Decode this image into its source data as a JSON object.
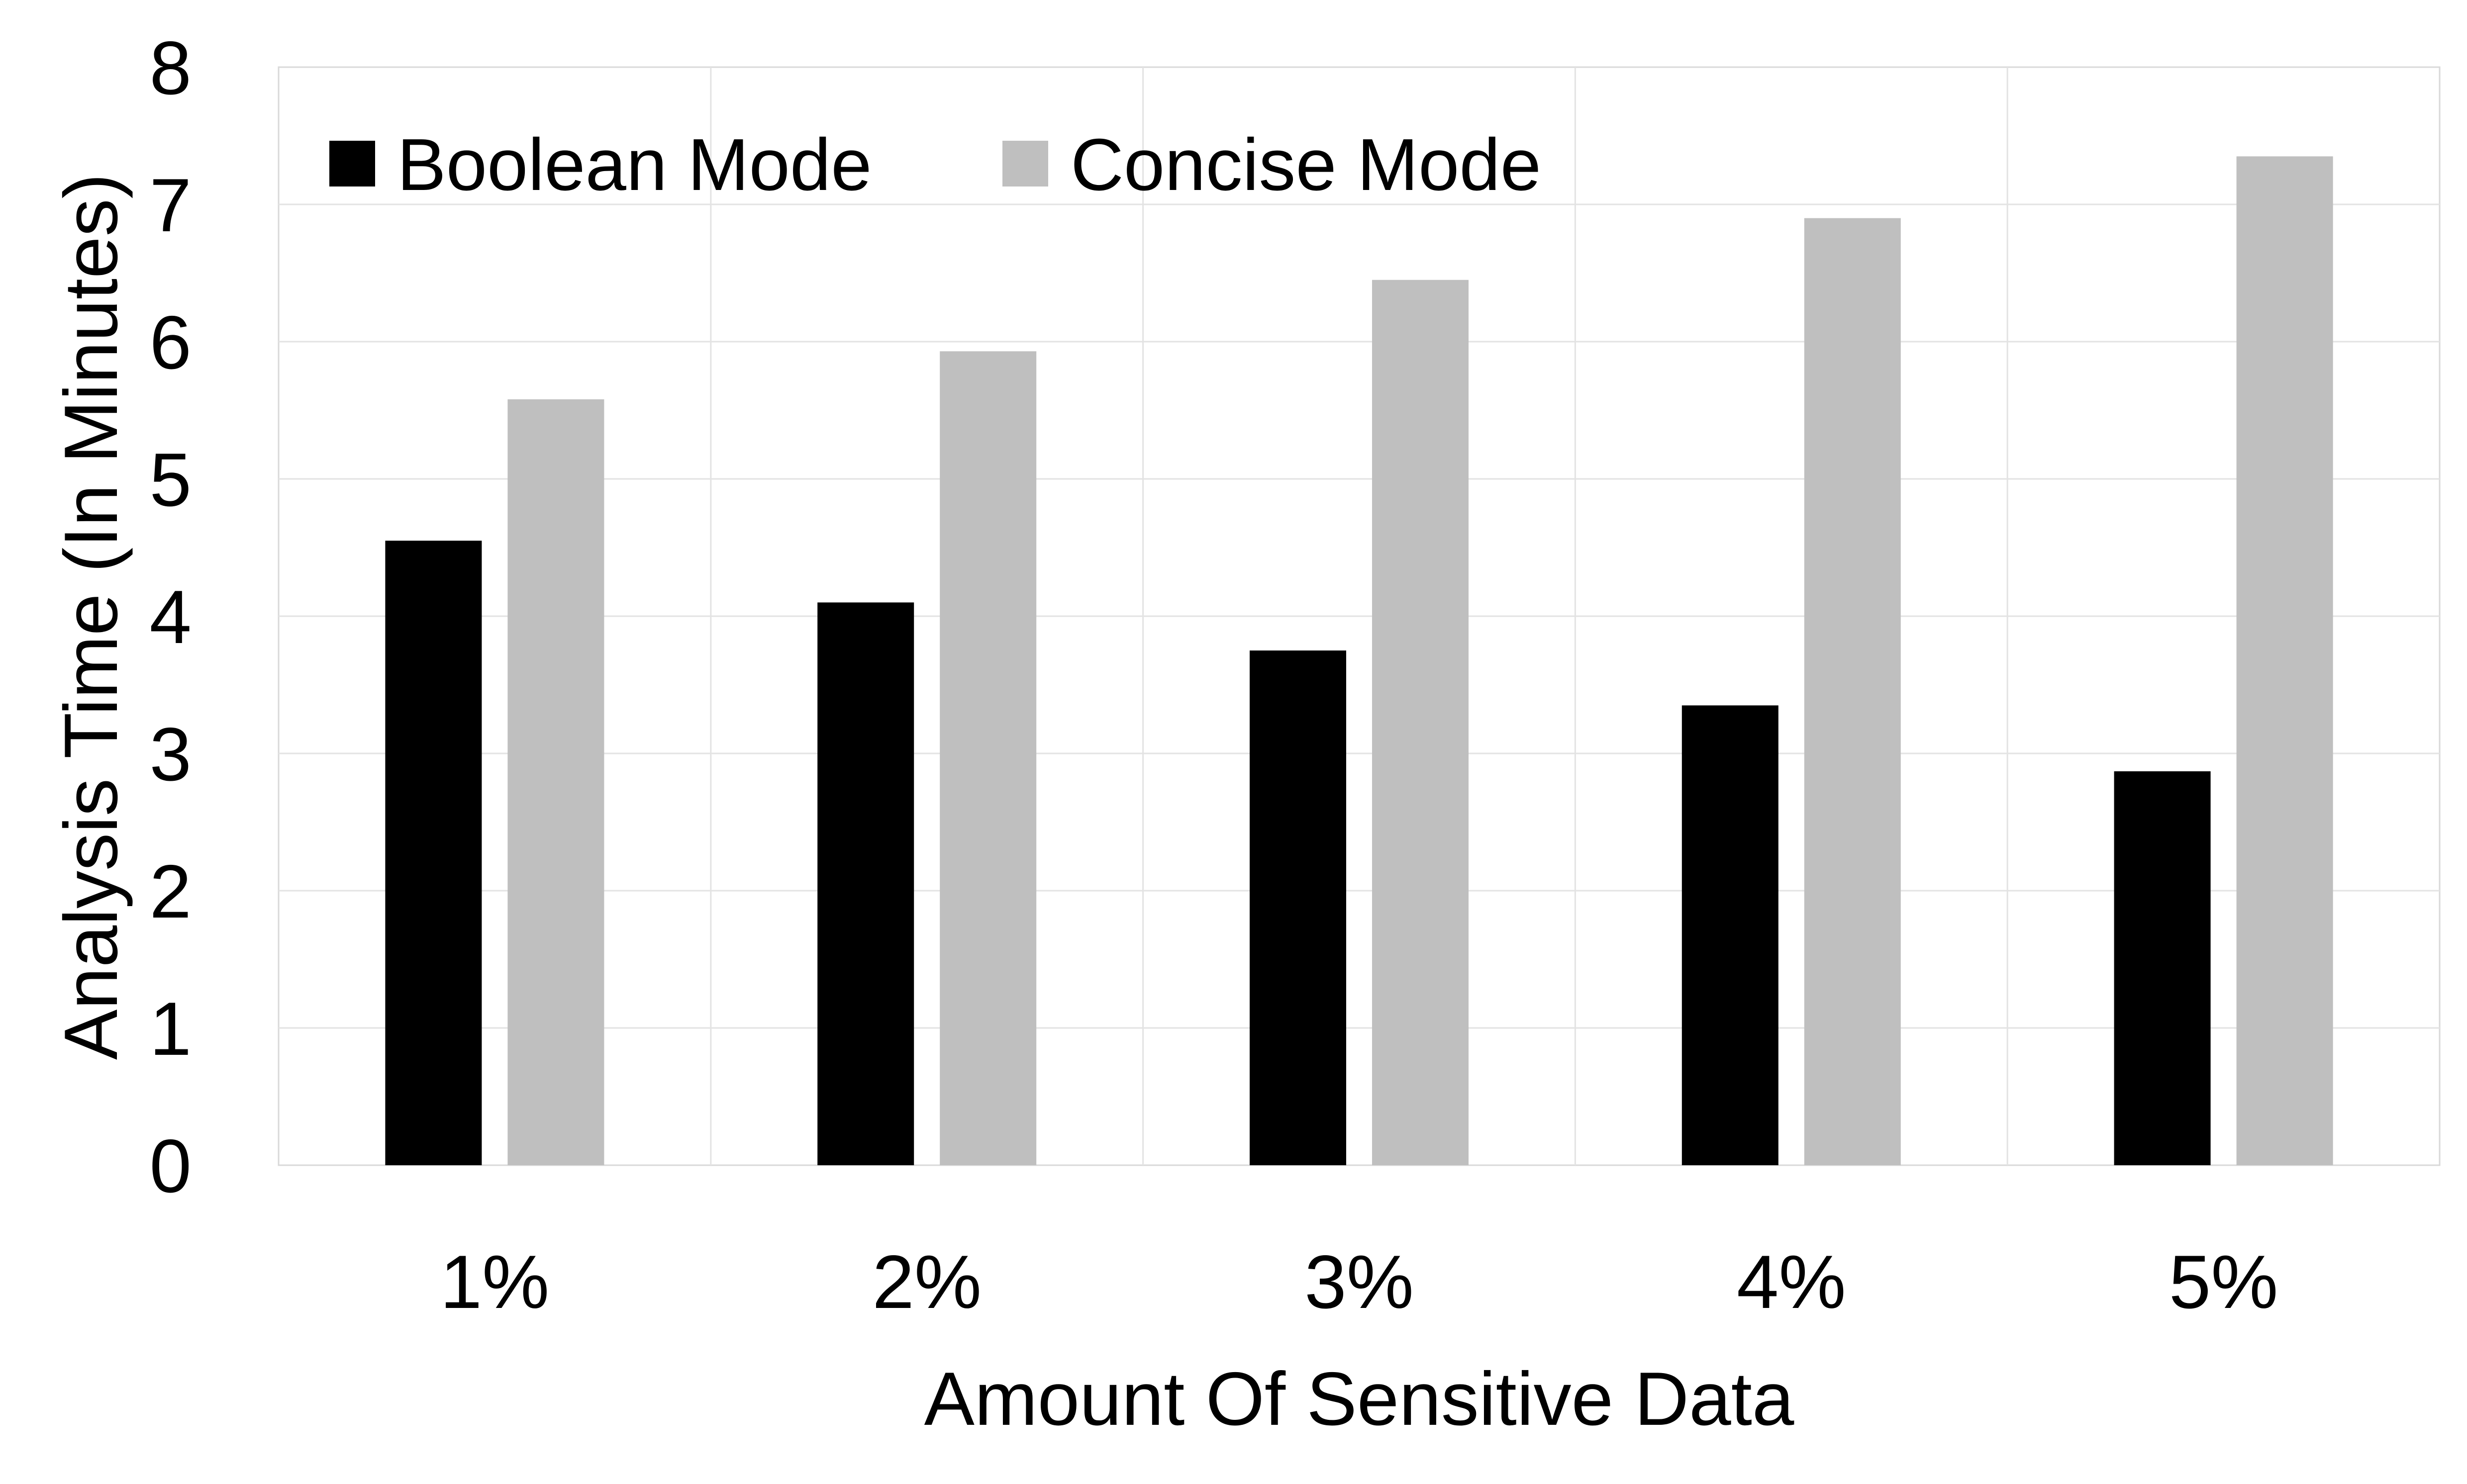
{
  "chart_data": {
    "type": "bar",
    "title": "",
    "xlabel": "Amount Of Sensitive Data",
    "ylabel": "Analysis Time (In Minutes)",
    "categories": [
      "1%",
      "2%",
      "3%",
      "4%",
      "5%"
    ],
    "ylim": [
      0,
      8
    ],
    "yticks": [
      "0",
      "1",
      "2",
      "3",
      "4",
      "5",
      "6",
      "7",
      "8"
    ],
    "grid": true,
    "legend_position": "top-left",
    "series": [
      {
        "name": "Boolean Mode",
        "color": "#000000",
        "values": [
          4.55,
          4.1,
          3.75,
          3.35,
          2.87
        ]
      },
      {
        "name": "Concise Mode",
        "color": "#bfbfbf",
        "values": [
          5.58,
          5.93,
          6.45,
          6.9,
          7.35
        ]
      }
    ]
  }
}
